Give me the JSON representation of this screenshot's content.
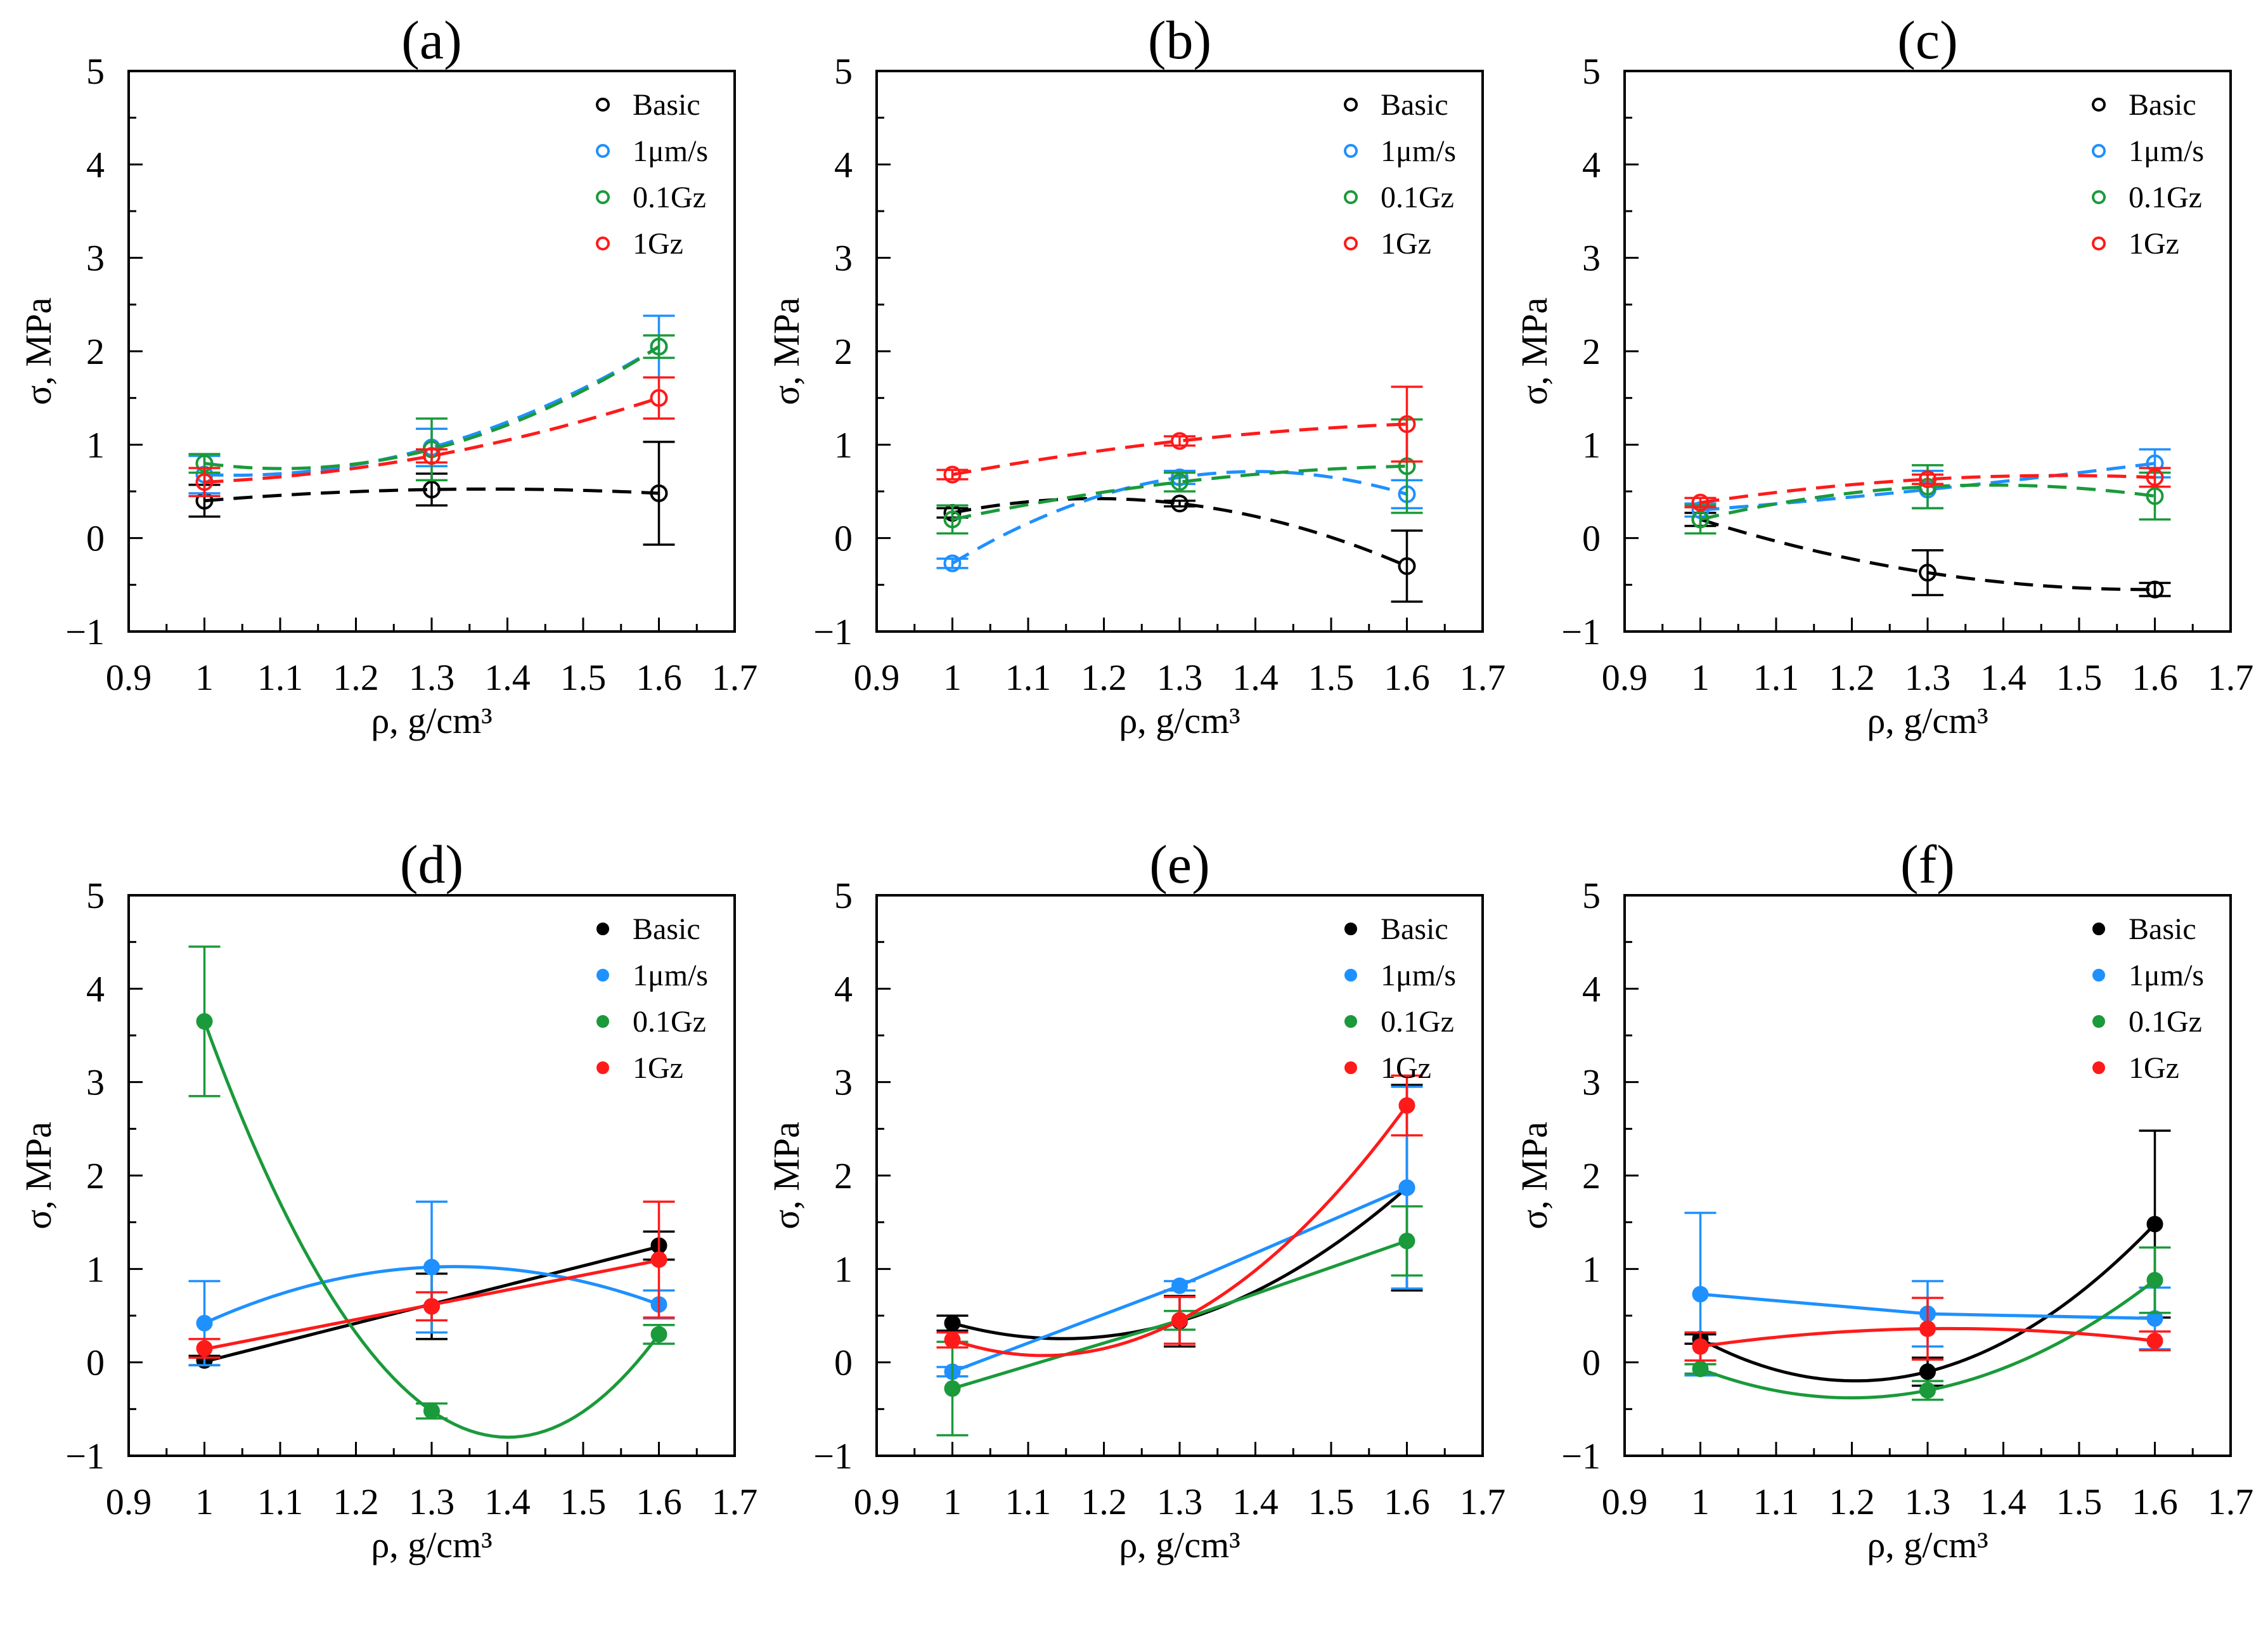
{
  "chart_data": [
    {
      "type": "line",
      "title": "(a)",
      "xlabel": "ρ, g/cm³",
      "ylabel": "σ, MPa",
      "xlim": [
        0.9,
        1.7
      ],
      "ylim": [
        -1,
        5
      ],
      "xticks": [
        "0.9",
        "1",
        "1.1",
        "1.2",
        "1.3",
        "1.4",
        "1.5",
        "1.6",
        "1.7"
      ],
      "yticks": [
        "−1",
        "0",
        "1",
        "2",
        "3",
        "4",
        "5"
      ],
      "x": [
        1,
        1.3,
        1.6
      ],
      "marker": "open",
      "linestyle": "dashed",
      "legend": "top-right",
      "series": [
        {
          "name": "Basic",
          "color": "#000000",
          "fit": "quadratic",
          "y": [
            0.4,
            0.52,
            0.48
          ],
          "err": [
            0.17,
            0.17,
            0.55
          ]
        },
        {
          "name": "1μm/s",
          "color": "#1E90FF",
          "fit": "quadratic",
          "y": [
            0.68,
            0.97,
            2.05
          ],
          "err": [
            0.2,
            0.2,
            0.33
          ]
        },
        {
          "name": "0.1Gz",
          "color": "#1A9A3A",
          "fit": "quadratic",
          "y": [
            0.8,
            0.95,
            2.05
          ],
          "err": [
            0.1,
            0.33,
            0.12
          ]
        },
        {
          "name": "1Gz",
          "color": "#FF1A1A",
          "fit": "quadratic",
          "y": [
            0.6,
            0.88,
            1.5
          ],
          "err": [
            0.15,
            0.07,
            0.22
          ]
        }
      ]
    },
    {
      "type": "line",
      "title": "(b)",
      "xlabel": "ρ, g/cm³",
      "ylabel": "σ, MPa",
      "xlim": [
        0.9,
        1.7
      ],
      "ylim": [
        -1,
        5
      ],
      "xticks": [
        "0.9",
        "1",
        "1.1",
        "1.2",
        "1.3",
        "1.4",
        "1.5",
        "1.6",
        "1.7"
      ],
      "yticks": [
        "−1",
        "0",
        "1",
        "2",
        "3",
        "4",
        "5"
      ],
      "x": [
        1,
        1.3,
        1.6
      ],
      "marker": "open",
      "linestyle": "dashed",
      "legend": "top-right",
      "series": [
        {
          "name": "Basic",
          "color": "#000000",
          "fit": "quadratic",
          "y": [
            0.27,
            0.37,
            -0.3
          ],
          "err": [
            0.05,
            0.03,
            0.38
          ]
        },
        {
          "name": "1μm/s",
          "color": "#1E90FF",
          "fit": "quadratic",
          "y": [
            -0.27,
            0.65,
            0.47
          ],
          "err": [
            0.05,
            0.07,
            0.15
          ]
        },
        {
          "name": "0.1Gz",
          "color": "#1A9A3A",
          "fit": "quadratic",
          "y": [
            0.2,
            0.6,
            0.77
          ],
          "err": [
            0.15,
            0.1,
            0.5
          ]
        },
        {
          "name": "1Gz",
          "color": "#FF1A1A",
          "fit": "quadratic",
          "y": [
            0.68,
            1.04,
            1.22
          ],
          "err": [
            0.05,
            0.05,
            0.4
          ]
        }
      ]
    },
    {
      "type": "line",
      "title": "(c)",
      "xlabel": "ρ, g/cm³",
      "ylabel": "σ, MPa",
      "xlim": [
        0.9,
        1.7
      ],
      "ylim": [
        -1,
        5
      ],
      "xticks": [
        "0.9",
        "1",
        "1.1",
        "1.2",
        "1.3",
        "1.4",
        "1.5",
        "1.6",
        "1.7"
      ],
      "yticks": [
        "−1",
        "0",
        "1",
        "2",
        "3",
        "4",
        "5"
      ],
      "x": [
        1,
        1.3,
        1.6
      ],
      "marker": "open",
      "linestyle": "dashed",
      "legend": "top-right",
      "series": [
        {
          "name": "Basic",
          "color": "#000000",
          "fit": "quadratic",
          "y": [
            0.2,
            -0.37,
            -0.55
          ],
          "err": [
            0.07,
            0.24,
            0.07
          ]
        },
        {
          "name": "1μm/s",
          "color": "#1E90FF",
          "fit": "quadratic",
          "y": [
            0.3,
            0.52,
            0.8
          ],
          "err": [
            0.07,
            0.2,
            0.15
          ]
        },
        {
          "name": "0.1Gz",
          "color": "#1A9A3A",
          "fit": "quadratic",
          "y": [
            0.2,
            0.55,
            0.45
          ],
          "err": [
            0.15,
            0.23,
            0.25
          ]
        },
        {
          "name": "1Gz",
          "color": "#FF1A1A",
          "fit": "quadratic",
          "y": [
            0.38,
            0.63,
            0.65
          ],
          "err": [
            0.05,
            0.05,
            0.1
          ]
        }
      ]
    },
    {
      "type": "line",
      "title": "(d)",
      "xlabel": "ρ, g/cm³",
      "ylabel": "σ, MPa",
      "xlim": [
        0.9,
        1.7
      ],
      "ylim": [
        -1,
        5
      ],
      "xticks": [
        "0.9",
        "1",
        "1.1",
        "1.2",
        "1.3",
        "1.4",
        "1.5",
        "1.6",
        "1.7"
      ],
      "yticks": [
        "−1",
        "0",
        "1",
        "2",
        "3",
        "4",
        "5"
      ],
      "x": [
        1,
        1.3,
        1.6
      ],
      "marker": "filled",
      "linestyle": "solid",
      "legend": "top-right",
      "series": [
        {
          "name": "Basic",
          "color": "#000000",
          "fit": "linear",
          "y": [
            0.02,
            0.6,
            1.25
          ],
          "err": [
            0.05,
            0.35,
            0.15
          ]
        },
        {
          "name": "1μm/s",
          "color": "#1E90FF",
          "fit": "quadratic",
          "y": [
            0.42,
            1.02,
            0.62
          ],
          "err": [
            0.45,
            0.7,
            0.15
          ]
        },
        {
          "name": "0.1Gz",
          "color": "#1A9A3A",
          "fit": "quadratic",
          "y": [
            3.65,
            -0.52,
            0.3
          ],
          "err": [
            0.8,
            0.08,
            0.1
          ]
        },
        {
          "name": "1Gz",
          "color": "#FF1A1A",
          "fit": "linear",
          "y": [
            0.15,
            0.6,
            1.1
          ],
          "err": [
            0.1,
            0.15,
            0.62
          ]
        }
      ]
    },
    {
      "type": "line",
      "title": "(e)",
      "xlabel": "ρ, g/cm³",
      "ylabel": "σ, MPa",
      "xlim": [
        0.9,
        1.7
      ],
      "ylim": [
        -1,
        5
      ],
      "xticks": [
        "0.9",
        "1",
        "1.1",
        "1.2",
        "1.3",
        "1.4",
        "1.5",
        "1.6",
        "1.7"
      ],
      "yticks": [
        "−1",
        "0",
        "1",
        "2",
        "3",
        "4",
        "5"
      ],
      "x": [
        1,
        1.3,
        1.6
      ],
      "marker": "filled",
      "linestyle": "solid",
      "legend": "top-right",
      "series": [
        {
          "name": "Basic",
          "color": "#000000",
          "fit": "quadratic",
          "y": [
            0.42,
            0.44,
            1.87
          ],
          "err": [
            0.08,
            0.27,
            1.1
          ]
        },
        {
          "name": "1μm/s",
          "color": "#1E90FF",
          "fit": "polyline",
          "y": [
            -0.1,
            0.82,
            1.87
          ],
          "err": [
            0.05,
            0.05,
            1.08
          ]
        },
        {
          "name": "0.1Gz",
          "color": "#1A9A3A",
          "fit": "polyline",
          "y": [
            -0.28,
            0.45,
            1.3
          ],
          "err": [
            0.5,
            0.1,
            0.37
          ]
        },
        {
          "name": "1Gz",
          "color": "#FF1A1A",
          "fit": "quadratic",
          "y": [
            0.24,
            0.45,
            2.75
          ],
          "err": [
            0.08,
            0.25,
            0.32
          ]
        }
      ]
    },
    {
      "type": "line",
      "title": "(f)",
      "xlabel": "ρ, g/cm³",
      "ylabel": "σ, MPa",
      "xlim": [
        0.9,
        1.7
      ],
      "ylim": [
        -1,
        5
      ],
      "xticks": [
        "0.9",
        "1",
        "1.1",
        "1.2",
        "1.3",
        "1.4",
        "1.5",
        "1.6",
        "1.7"
      ],
      "yticks": [
        "−1",
        "0",
        "1",
        "2",
        "3",
        "4",
        "5"
      ],
      "x": [
        1,
        1.3,
        1.6
      ],
      "marker": "filled",
      "linestyle": "solid",
      "legend": "top-right",
      "series": [
        {
          "name": "Basic",
          "color": "#000000",
          "fit": "quadratic",
          "y": [
            0.25,
            -0.1,
            1.48
          ],
          "err": [
            0.05,
            0.15,
            1.0
          ]
        },
        {
          "name": "1μm/s",
          "color": "#1E90FF",
          "fit": "polyline",
          "y": [
            0.73,
            0.52,
            0.47
          ],
          "err": [
            0.87,
            0.35,
            0.33
          ]
        },
        {
          "name": "0.1Gz",
          "color": "#1A9A3A",
          "fit": "quadratic",
          "y": [
            -0.07,
            -0.3,
            0.88
          ],
          "err": [
            0.05,
            0.1,
            0.35
          ]
        },
        {
          "name": "1Gz",
          "color": "#FF1A1A",
          "fit": "quadratic",
          "y": [
            0.17,
            0.36,
            0.23
          ],
          "err": [
            0.15,
            0.33,
            0.1
          ]
        }
      ]
    }
  ]
}
